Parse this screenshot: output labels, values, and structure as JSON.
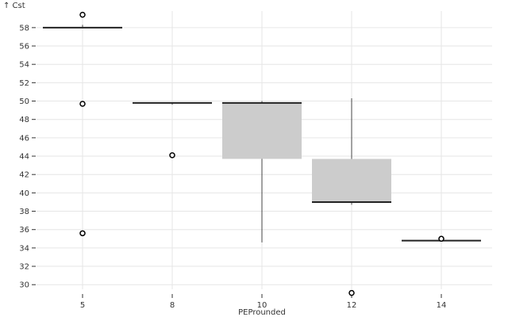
{
  "chart_data": {
    "type": "box",
    "xlabel": "PEProunded",
    "ylabel": "↑ Cst",
    "ylim": [
      29.5,
      59.8
    ],
    "yticks": [
      30,
      32,
      34,
      36,
      38,
      40,
      42,
      44,
      46,
      48,
      50,
      52,
      54,
      56,
      58
    ],
    "grid": true,
    "categories": [
      "5",
      "8",
      "10",
      "12",
      "14"
    ],
    "groups": [
      {
        "category": "5",
        "whisker_low": 58.0,
        "q1": 58.0,
        "median": 58.0,
        "q3": 58.0,
        "whisker_high": 58.3,
        "outliers": [
          59.4,
          49.7,
          35.6
        ]
      },
      {
        "category": "8",
        "whisker_low": 49.6,
        "q1": 49.8,
        "median": 49.8,
        "q3": 49.8,
        "whisker_high": 49.8,
        "outliers": [
          44.1
        ]
      },
      {
        "category": "10",
        "whisker_low": 34.6,
        "q1": 43.7,
        "median": 49.8,
        "q3": 49.8,
        "whisker_high": 50.0,
        "outliers": []
      },
      {
        "category": "12",
        "whisker_low": 38.7,
        "q1": 39.0,
        "median": 39.0,
        "q3": 43.7,
        "whisker_high": 50.3,
        "outliers": [
          29.1
        ]
      },
      {
        "category": "14",
        "whisker_low": 34.8,
        "q1": 34.8,
        "median": 34.8,
        "q3": 34.8,
        "whisker_high": 35.0,
        "outliers": [
          35.0
        ]
      }
    ]
  }
}
